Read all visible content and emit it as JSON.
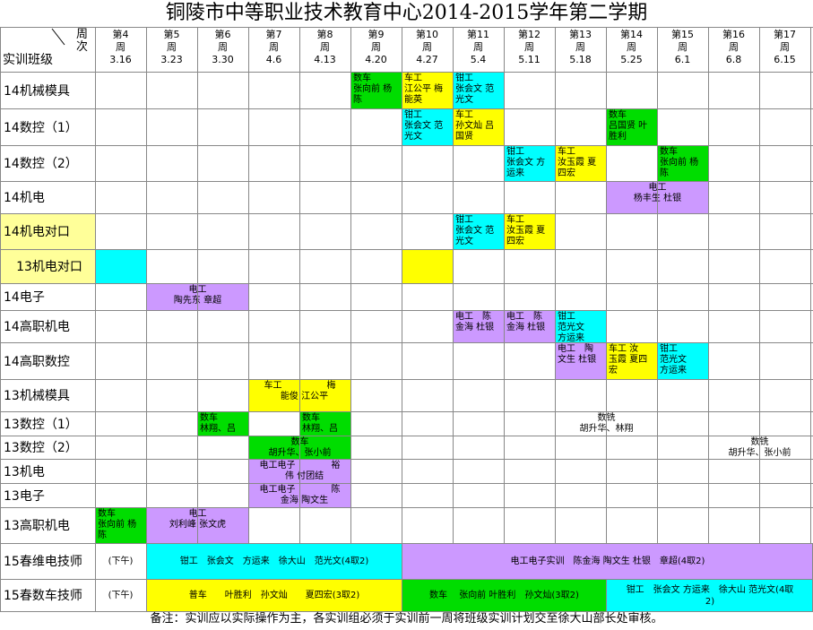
{
  "title": "铜陵市中等职业技术教育中心2014-2015学年第二学期",
  "corner": {
    "col_label": "周\n次",
    "row_label": "实训班级"
  },
  "weeks": [
    {
      "num": "第4",
      "zhou": "周",
      "date": "3.16"
    },
    {
      "num": "第5",
      "zhou": "周",
      "date": "3.23"
    },
    {
      "num": "第6",
      "zhou": "周",
      "date": "3.30"
    },
    {
      "num": "第7",
      "zhou": "周",
      "date": "4.6"
    },
    {
      "num": "第8",
      "zhou": "周",
      "date": "4.13"
    },
    {
      "num": "第9",
      "zhou": "周",
      "date": "4.20"
    },
    {
      "num": "第10",
      "zhou": "周",
      "date": "4.27"
    },
    {
      "num": "第11",
      "zhou": "周",
      "date": "5.4"
    },
    {
      "num": "第12",
      "zhou": "周",
      "date": "5.11"
    },
    {
      "num": "第13",
      "zhou": "周",
      "date": "5.18"
    },
    {
      "num": "第14",
      "zhou": "周",
      "date": "5.25"
    },
    {
      "num": "第15",
      "zhou": "周",
      "date": "6.1"
    },
    {
      "num": "第16",
      "zhou": "周",
      "date": "6.8"
    },
    {
      "num": "第17",
      "zhou": "周",
      "date": "6.15"
    }
  ],
  "rows": [
    {
      "label": "14机械模具",
      "hl": ""
    },
    {
      "label": "14数控（1）",
      "hl": ""
    },
    {
      "label": "14数控（2）",
      "hl": ""
    },
    {
      "label": "14机电",
      "hl": ""
    },
    {
      "label": "14机电对口",
      "hl": "#ffff99"
    },
    {
      "label": "13机电对口",
      "hl": "#ffff99"
    },
    {
      "label": "14电子",
      "hl": ""
    },
    {
      "label": "14高职机电",
      "hl": ""
    },
    {
      "label": "14高职数控",
      "hl": ""
    },
    {
      "label": "13机械模具",
      "hl": ""
    },
    {
      "label": "13数控（1）",
      "hl": ""
    },
    {
      "label": "13数控（2）",
      "hl": ""
    },
    {
      "label": "13机电",
      "hl": ""
    },
    {
      "label": "13电子",
      "hl": ""
    },
    {
      "label": "13高职机电",
      "hl": ""
    },
    {
      "label": "15春维电技师",
      "hl": ""
    },
    {
      "label": "15春数车技师",
      "hl": ""
    }
  ],
  "afternoon": "(下午)",
  "blocks": [
    {
      "row": 0,
      "start": 5,
      "span": 1,
      "color": "#00dd00",
      "text": "数车\n张向前 杨\n陈",
      "align": "left"
    },
    {
      "row": 0,
      "start": 6,
      "span": 1,
      "color": "#ffff00",
      "text": "车工\n江公平 梅\n能英",
      "align": "left"
    },
    {
      "row": 0,
      "start": 7,
      "span": 1,
      "color": "#00ffff",
      "text": "钳工\n张会文 范\n光文",
      "align": "left"
    },
    {
      "row": 1,
      "start": 6,
      "span": 1,
      "color": "#00ffff",
      "text": "钳工\n张会文 范\n光文",
      "align": "left"
    },
    {
      "row": 1,
      "start": 7,
      "span": 1,
      "color": "#ffff00",
      "text": "车工\n孙文灿 吕\n国贤",
      "align": "left"
    },
    {
      "row": 1,
      "start": 10,
      "span": 1,
      "color": "#00dd00",
      "text": "数车\n吕国贤 叶\n胜利",
      "align": "left"
    },
    {
      "row": 2,
      "start": 8,
      "span": 1,
      "color": "#00ffff",
      "text": "钳工\n张会文 方\n运来",
      "align": "left"
    },
    {
      "row": 2,
      "start": 9,
      "span": 1,
      "color": "#ffff00",
      "text": "车工\n汝玉霞 夏\n四宏",
      "align": "left"
    },
    {
      "row": 2,
      "start": 11,
      "span": 1,
      "color": "#00dd00",
      "text": "数车\n张向前 杨\n陈",
      "align": "left"
    },
    {
      "row": 3,
      "start": 10,
      "span": 2,
      "color": "#cc99ff",
      "text": "电工\n杨丰生 杜银",
      "align": "center"
    },
    {
      "row": 4,
      "start": 7,
      "span": 1,
      "color": "#00ffff",
      "text": "钳工\n张会文 范\n光文",
      "align": "left"
    },
    {
      "row": 4,
      "start": 8,
      "span": 1,
      "color": "#ffff00",
      "text": "车工\n汝玉霞 夏\n四宏",
      "align": "left"
    },
    {
      "row": 5,
      "start": 0,
      "span": 1,
      "color": "#00ffff",
      "text": "",
      "align": "left"
    },
    {
      "row": 5,
      "start": 6,
      "span": 1,
      "color": "#ffff00",
      "text": "",
      "align": "left"
    },
    {
      "row": 6,
      "start": 1,
      "span": 2,
      "color": "#cc99ff",
      "text": "电工\n陶先东 章超",
      "align": "center"
    },
    {
      "row": 7,
      "start": 7,
      "span": 1,
      "color": "#cc99ff",
      "text": "电工　陈\n金海 杜银",
      "align": "left"
    },
    {
      "row": 7,
      "start": 8,
      "span": 1,
      "color": "#cc99ff",
      "text": "电工　陈\n金海 杜银",
      "align": "left"
    },
    {
      "row": 7,
      "start": 9,
      "span": 1,
      "color": "#00ffff",
      "text": "钳工\n范光文\n方运来",
      "align": "left"
    },
    {
      "row": 8,
      "start": 9,
      "span": 1,
      "color": "#cc99ff",
      "text": "电工　陶\n文生 杜银",
      "align": "left"
    },
    {
      "row": 8,
      "start": 10,
      "span": 1,
      "color": "#ffff00",
      "text": "车工 汝\n玉霞 夏四\n宏",
      "align": "left"
    },
    {
      "row": 8,
      "start": 11,
      "span": 1,
      "color": "#00ffff",
      "text": "钳工\n范光文\n方运来",
      "align": "left"
    },
    {
      "row": 9,
      "start": 3,
      "span": 2,
      "color": "#ffff00",
      "text": "车工　　　　　梅\n　能俊 江公平",
      "align": "center"
    },
    {
      "row": 10,
      "start": 2,
      "span": 1,
      "color": "#00dd00",
      "text": "数车\n林翔、吕",
      "align": "left"
    },
    {
      "row": 10,
      "start": 4,
      "span": 1,
      "color": "#00dd00",
      "text": "数车\n林翔、吕",
      "align": "left"
    },
    {
      "row": 10,
      "start": 8,
      "span": 4,
      "color": "",
      "text": "数铣\n胡升华、林翔",
      "align": "center"
    },
    {
      "row": 11,
      "start": 3,
      "span": 2,
      "color": "#00dd00",
      "text": "数车\n胡升华、张小前",
      "align": "center"
    },
    {
      "row": 11,
      "start": 12,
      "span": 2,
      "color": "",
      "text": "数铣\n胡升华、张小前",
      "align": "center"
    },
    {
      "row": 12,
      "start": 3,
      "span": 2,
      "color": "#cc99ff",
      "text": "电工电子　　　　裕\n　伟 付团结",
      "align": "center"
    },
    {
      "row": 13,
      "start": 3,
      "span": 2,
      "color": "#cc99ff",
      "text": "电工电子　　　　陈\n　金海 陶文生",
      "align": "center"
    },
    {
      "row": 14,
      "start": 0,
      "span": 1,
      "color": "#00dd00",
      "text": "数车\n张向前 杨\n陈",
      "align": "left"
    },
    {
      "row": 14,
      "start": 1,
      "span": 2,
      "color": "#cc99ff",
      "text": "电工\n刘利峰 张文虎",
      "align": "center"
    }
  ],
  "wide_blocks": [
    {
      "row": 15,
      "x0": 163,
      "x1": 448,
      "color": "#00ffff",
      "text": "钳工　张会文　方运来　徐大山　范光文(4取2)"
    },
    {
      "row": 15,
      "x0": 448,
      "x1": 907,
      "color": "#cc99ff",
      "text": "电工电子实训　陈金海 陶文生 杜银　章超(4取2)"
    },
    {
      "row": 16,
      "x0": 163,
      "x1": 448,
      "color": "#ffff00",
      "text": "普车　　叶胜利　孙文灿　　夏四宏(3取2)"
    },
    {
      "row": 16,
      "x0": 448,
      "x1": 676,
      "color": "#00dd00",
      "text": "数车　 张向前 叶胜利　孙文灿(3取2)"
    },
    {
      "row": 16,
      "x0": 676,
      "x1": 907,
      "color": "#00ffff",
      "text": "钳工　张会文 方运来　徐大山 范光文(4取\n2)"
    }
  ],
  "note": "备注：实训应以实际操作为主，各实训组必须于实训前一周将班级实训计划交至徐大山部长处审核。"
}
